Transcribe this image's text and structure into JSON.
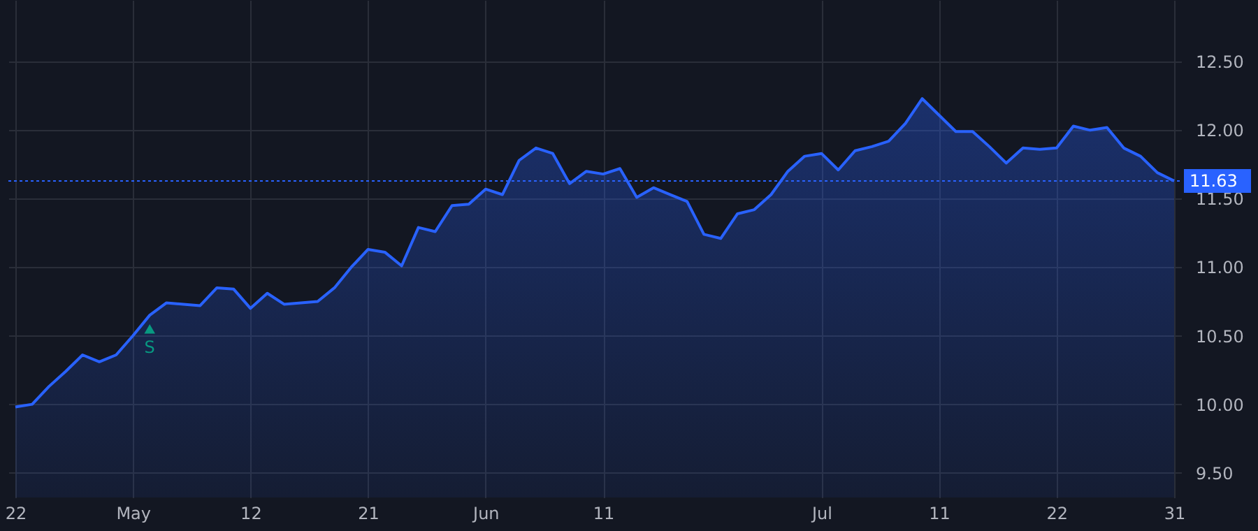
{
  "chart_data": {
    "type": "area",
    "categories": [
      "22",
      null,
      null,
      null,
      null,
      null,
      null,
      "May",
      null,
      null,
      null,
      null,
      null,
      null,
      "12",
      null,
      null,
      null,
      null,
      null,
      null,
      "21",
      null,
      null,
      null,
      null,
      null,
      null,
      "Jun",
      null,
      null,
      null,
      null,
      null,
      null,
      "11",
      null,
      null,
      null,
      null,
      null,
      null,
      null,
      null,
      null,
      null,
      null,
      null,
      "Jul",
      null,
      null,
      null,
      null,
      null,
      null,
      "11",
      null,
      null,
      null,
      null,
      null,
      null,
      "22",
      null,
      null,
      null,
      null,
      null,
      null,
      "31"
    ],
    "series": [
      {
        "color": "#2962ff",
        "values": [
          9.98,
          10.0,
          10.13,
          10.24,
          10.36,
          10.31,
          10.36,
          10.5,
          10.65,
          10.74,
          10.73,
          10.72,
          10.85,
          10.84,
          10.7,
          10.81,
          10.73,
          10.74,
          10.75,
          10.85,
          11.0,
          11.13,
          11.11,
          11.01,
          11.29,
          11.26,
          11.45,
          11.46,
          11.57,
          11.53,
          11.78,
          11.87,
          11.83,
          11.61,
          11.7,
          11.68,
          11.72,
          11.51,
          11.58,
          11.53,
          11.48,
          11.24,
          11.21,
          11.39,
          11.42,
          11.53,
          11.7,
          11.81,
          11.83,
          11.71,
          11.85,
          11.88,
          11.92,
          12.05,
          12.23,
          12.11,
          11.99,
          11.99,
          11.88,
          11.76,
          11.87,
          11.86,
          11.87,
          12.03,
          12.0,
          12.02,
          11.87,
          11.81,
          11.69,
          11.63
        ]
      }
    ],
    "ylim": [
      9.32,
      12.95
    ],
    "yticks": [
      {
        "value": 9.5,
        "label": "9.50"
      },
      {
        "value": 10,
        "label": "10.00"
      },
      {
        "value": 10.5,
        "label": "10.50"
      },
      {
        "value": 11,
        "label": "11.00"
      },
      {
        "value": 11.5,
        "label": "11.50"
      },
      {
        "value": 12,
        "label": "12.00"
      },
      {
        "value": 12.5,
        "label": "12.50"
      }
    ],
    "ref_lines": [
      {
        "axis": "y",
        "value": 11.63,
        "label": "11.63",
        "color": "#2962ff",
        "line_style": "dotted"
      }
    ],
    "annotations": [
      {
        "text": "S",
        "y": 10.55
      }
    ],
    "grid": true
  }
}
